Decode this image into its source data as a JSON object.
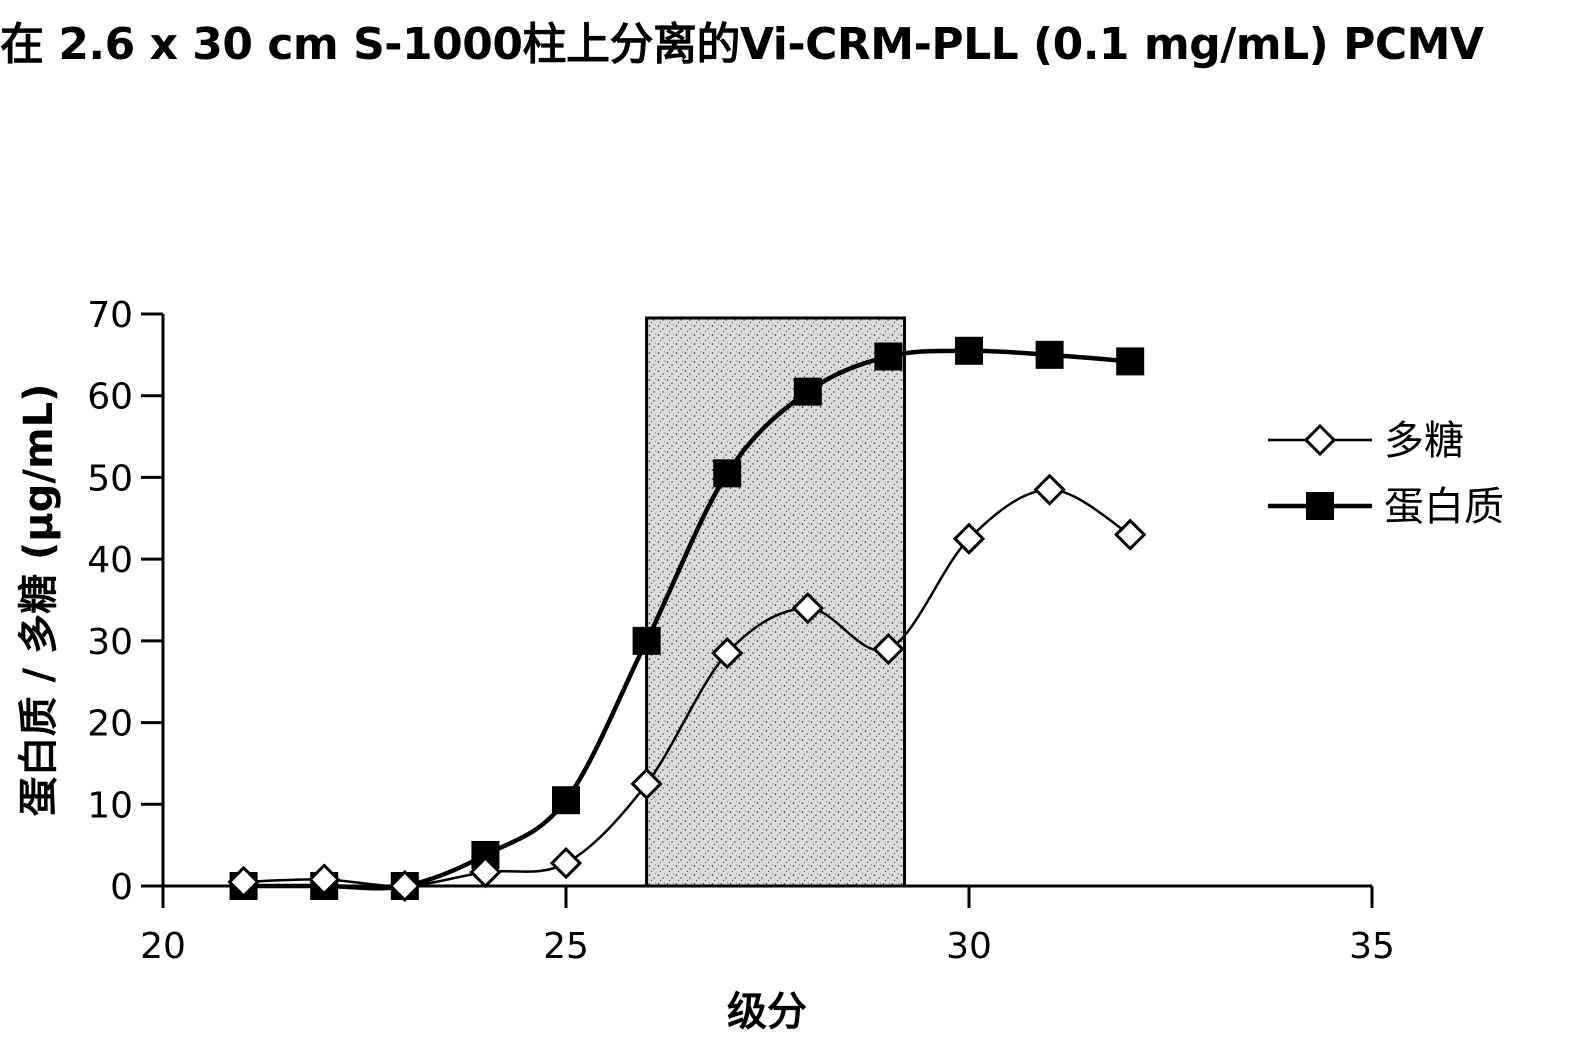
{
  "chart_data": {
    "type": "line",
    "title": "在 2.6 x 30 cm S-1000柱上分离的Vi-CRM-PLL (0.1 mg/mL) PCMV",
    "xlabel": "级分",
    "ylabel": "蛋白质 / 多糖 (μg/mL)",
    "xlim": [
      20,
      35
    ],
    "ylim": [
      0,
      70
    ],
    "x_ticks": [
      "20",
      "25",
      "30",
      "35"
    ],
    "y_ticks": [
      "0",
      "10",
      "20",
      "30",
      "40",
      "50",
      "60",
      "70"
    ],
    "shaded_region": {
      "x_start": 26,
      "x_end": 29.2,
      "pattern": "stippled"
    },
    "legend_position": "right",
    "series": [
      {
        "name": "多糖",
        "marker": "open-diamond",
        "color": "#000000",
        "x": [
          21,
          22,
          23,
          24,
          25,
          26,
          27,
          28,
          29,
          30,
          31,
          32
        ],
        "y": [
          0.5,
          0.8,
          0,
          1.7,
          2.8,
          12.5,
          28.5,
          34,
          29,
          42.5,
          48.5,
          43
        ]
      },
      {
        "name": "蛋白质",
        "marker": "filled-square",
        "color": "#000000",
        "x": [
          21,
          22,
          23,
          24,
          25,
          26,
          27,
          28,
          29,
          30,
          31,
          32
        ],
        "y": [
          0,
          0,
          0,
          3.8,
          10.5,
          30,
          50.5,
          60.5,
          64.8,
          65.5,
          65,
          64.2
        ]
      }
    ]
  }
}
